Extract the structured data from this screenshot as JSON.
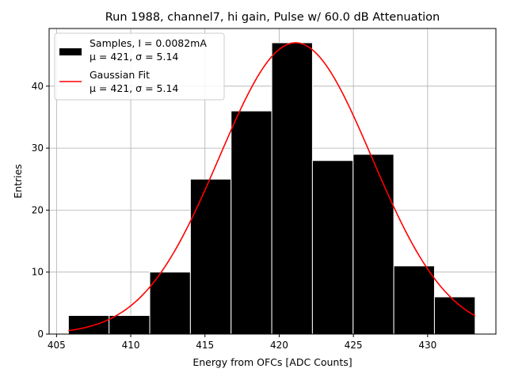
{
  "chart_data": {
    "type": "bar",
    "title": "Run 1988, channel7, hi gain, Pulse w/ 60.0 dB Attenuation",
    "xlabel": "Energy from OFCs [ADC Counts]",
    "ylabel": "Entries",
    "xlim": [
      404.5,
      434.6
    ],
    "ylim": [
      0,
      49.3
    ],
    "xticks": [
      405,
      410,
      415,
      420,
      425,
      430
    ],
    "yticks": [
      0,
      10,
      20,
      30,
      40
    ],
    "grid": true,
    "legend_position": "top-left",
    "histogram": {
      "name": "Samples, I = 0.0082mA",
      "stats_label": "μ = 421, σ = 5.14",
      "bin_edges": [
        405.8,
        408.54,
        411.28,
        414.02,
        416.76,
        419.5,
        422.24,
        424.98,
        427.72,
        430.46,
        433.2
      ],
      "counts": [
        3,
        3,
        10,
        25,
        36,
        47,
        28,
        29,
        11,
        6
      ],
      "color": "#000000"
    },
    "fit": {
      "name": "Gaussian Fit",
      "stats_label": "μ = 421, σ = 5.14",
      "type": "gaussian",
      "amplitude": 47,
      "mean": 421.1,
      "sigma": 5.14,
      "x_range": [
        405.8,
        433.2
      ],
      "color": "#ff0000"
    }
  }
}
